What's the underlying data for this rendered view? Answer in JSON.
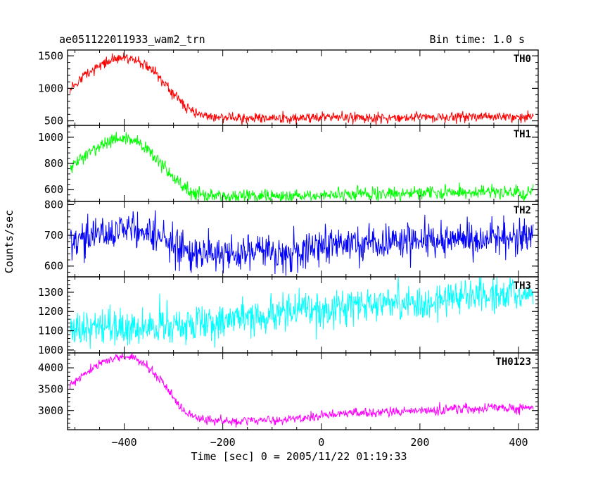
{
  "header": {
    "left": "ae051122011933_wam2_trn",
    "right": "Bin time: 1.0 s"
  },
  "chart_data": {
    "type": "line",
    "title": "ae051122011933_wam2_trn",
    "subtitle": "Bin time: 1.0 s",
    "xlabel": "Time [sec] 0 = 2005/11/22 01:19:33",
    "ylabel": "Counts/sec",
    "xlim": [
      -515,
      440
    ],
    "data_x_range": [
      -510,
      430
    ],
    "x_ticks": [
      -400,
      -200,
      0,
      200,
      400
    ],
    "x_tick_labels": [
      "−400",
      "−200",
      "0",
      "200",
      "400"
    ],
    "grid": false,
    "panels": [
      {
        "name": "TH0",
        "color": "#ff0000",
        "ylim": [
          430,
          1590
        ],
        "y_ticks": [
          500,
          1000,
          1500
        ],
        "y_tick_labels": [
          "500",
          "1000",
          "1500"
        ],
        "noise": 40,
        "x": [
          -510,
          -480,
          -450,
          -420,
          -400,
          -380,
          -350,
          -320,
          -300,
          -280,
          -260,
          -240,
          -220,
          -200,
          -150,
          -100,
          -50,
          -5,
          0,
          5,
          50,
          100,
          150,
          200,
          250,
          300,
          350,
          400,
          430
        ],
        "values": [
          1000,
          1200,
          1360,
          1440,
          1470,
          1440,
          1330,
          1100,
          900,
          740,
          640,
          580,
          560,
          550,
          545,
          545,
          545,
          545,
          590,
          565,
          555,
          555,
          555,
          560,
          560,
          560,
          565,
          560,
          560
        ]
      },
      {
        "name": "TH1",
        "color": "#00ff00",
        "ylim": [
          510,
          1090
        ],
        "y_ticks": [
          600,
          800,
          1000
        ],
        "y_tick_labels": [
          "600",
          "800",
          "1000"
        ],
        "noise": 25,
        "x": [
          -510,
          -480,
          -450,
          -420,
          -400,
          -380,
          -350,
          -320,
          -300,
          -280,
          -260,
          -240,
          -200,
          -150,
          -100,
          -50,
          -5,
          0,
          5,
          50,
          100,
          150,
          200,
          250,
          300,
          350,
          400,
          430
        ],
        "values": [
          770,
          860,
          930,
          980,
          1000,
          980,
          900,
          780,
          690,
          620,
          575,
          560,
          550,
          550,
          550,
          555,
          560,
          580,
          565,
          565,
          570,
          575,
          580,
          580,
          580,
          580,
          580,
          580
        ]
      },
      {
        "name": "TH2",
        "color": "#0000ff",
        "ylim": [
          565,
          810
        ],
        "y_ticks": [
          600,
          700,
          800
        ],
        "y_tick_labels": [
          "600",
          "700",
          "800"
        ],
        "noise": 30,
        "x": [
          -510,
          -450,
          -400,
          -370,
          -340,
          -300,
          -250,
          -200,
          -150,
          -100,
          -50,
          0,
          50,
          100,
          150,
          200,
          250,
          300,
          350,
          400,
          430
        ],
        "values": [
          680,
          705,
          725,
          720,
          700,
          665,
          640,
          635,
          640,
          640,
          650,
          660,
          670,
          675,
          680,
          685,
          690,
          690,
          695,
          695,
          695
        ]
      },
      {
        "name": "TH3",
        "color": "#00ffff",
        "ylim": [
          985,
          1380
        ],
        "y_ticks": [
          1000,
          1100,
          1200,
          1300
        ],
        "y_tick_labels": [
          "1000",
          "1100",
          "1200",
          "1300"
        ],
        "noise": 45,
        "x": [
          -510,
          -450,
          -400,
          -350,
          -300,
          -250,
          -200,
          -150,
          -100,
          -50,
          0,
          50,
          100,
          150,
          200,
          250,
          300,
          350,
          400,
          430
        ],
        "values": [
          1100,
          1110,
          1110,
          1120,
          1130,
          1140,
          1150,
          1170,
          1180,
          1200,
          1210,
          1220,
          1240,
          1250,
          1260,
          1270,
          1280,
          1285,
          1290,
          1290
        ]
      },
      {
        "name": "TH0123",
        "color": "#ff00ff",
        "ylim": [
          2550,
          4350
        ],
        "y_ticks": [
          3000,
          3500,
          4000
        ],
        "y_tick_labels": [
          "3000",
          "3500",
          "4000"
        ],
        "noise": 55,
        "x": [
          -510,
          -480,
          -450,
          -420,
          -400,
          -380,
          -350,
          -320,
          -300,
          -280,
          -260,
          -240,
          -200,
          -150,
          -100,
          -50,
          -5,
          0,
          5,
          50,
          100,
          150,
          200,
          250,
          300,
          350,
          400,
          430
        ],
        "values": [
          3550,
          3850,
          4080,
          4230,
          4270,
          4220,
          4000,
          3650,
          3300,
          3000,
          2870,
          2800,
          2760,
          2760,
          2780,
          2820,
          2850,
          2950,
          2900,
          2930,
          2950,
          2980,
          3000,
          3020,
          3040,
          3060,
          3070,
          3070
        ]
      }
    ]
  }
}
